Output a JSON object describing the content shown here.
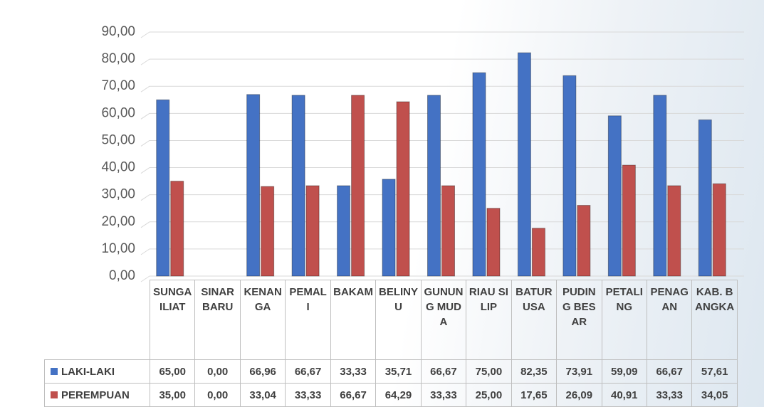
{
  "chart_data": {
    "type": "bar",
    "categories": [
      "SUNGAILIAT",
      "SINAR BARU",
      "KENANGA",
      "PEMALI",
      "BAKAM",
      "BELINYU",
      "GUNUNG MUDA",
      "RIAU SILIP",
      "BATURUSA",
      "PUDING BESAR",
      "PETALING",
      "PENAGAN",
      "KAB. BANGKA"
    ],
    "series": [
      {
        "name": "LAKI-LAKI",
        "color": "#4472c4",
        "values": [
          65,
          0,
          66.96,
          66.67,
          33.33,
          35.71,
          66.67,
          75,
          82.35,
          73.91,
          59.09,
          66.67,
          57.61
        ],
        "value_labels": [
          "65,00",
          "0,00",
          "66,96",
          "66,67",
          "33,33",
          "35,71",
          "66,67",
          "75,00",
          "82,35",
          "73,91",
          "59,09",
          "66,67",
          "57,61"
        ]
      },
      {
        "name": "PEREMPUAN",
        "color": "#c0504d",
        "values": [
          35,
          0,
          33.04,
          33.33,
          66.67,
          64.29,
          33.33,
          25,
          17.65,
          26.09,
          40.91,
          33.33,
          34.05
        ],
        "value_labels": [
          "35,00",
          "0,00",
          "33,04",
          "33,33",
          "66,67",
          "64,29",
          "33,33",
          "25,00",
          "17,65",
          "26,09",
          "40,91",
          "33,33",
          "34,05"
        ]
      }
    ],
    "ylim": [
      0,
      90
    ],
    "yticks": [
      {
        "value": 0,
        "label": "0,00"
      },
      {
        "value": 10,
        "label": "10,00"
      },
      {
        "value": 20,
        "label": "20,00"
      },
      {
        "value": 30,
        "label": "30,00"
      },
      {
        "value": 40,
        "label": "40,00"
      },
      {
        "value": 50,
        "label": "50,00"
      },
      {
        "value": 60,
        "label": "60,00"
      },
      {
        "value": 70,
        "label": "70,00"
      },
      {
        "value": 80,
        "label": "80,00"
      },
      {
        "value": 90,
        "label": "90,00"
      }
    ],
    "grid": true
  }
}
